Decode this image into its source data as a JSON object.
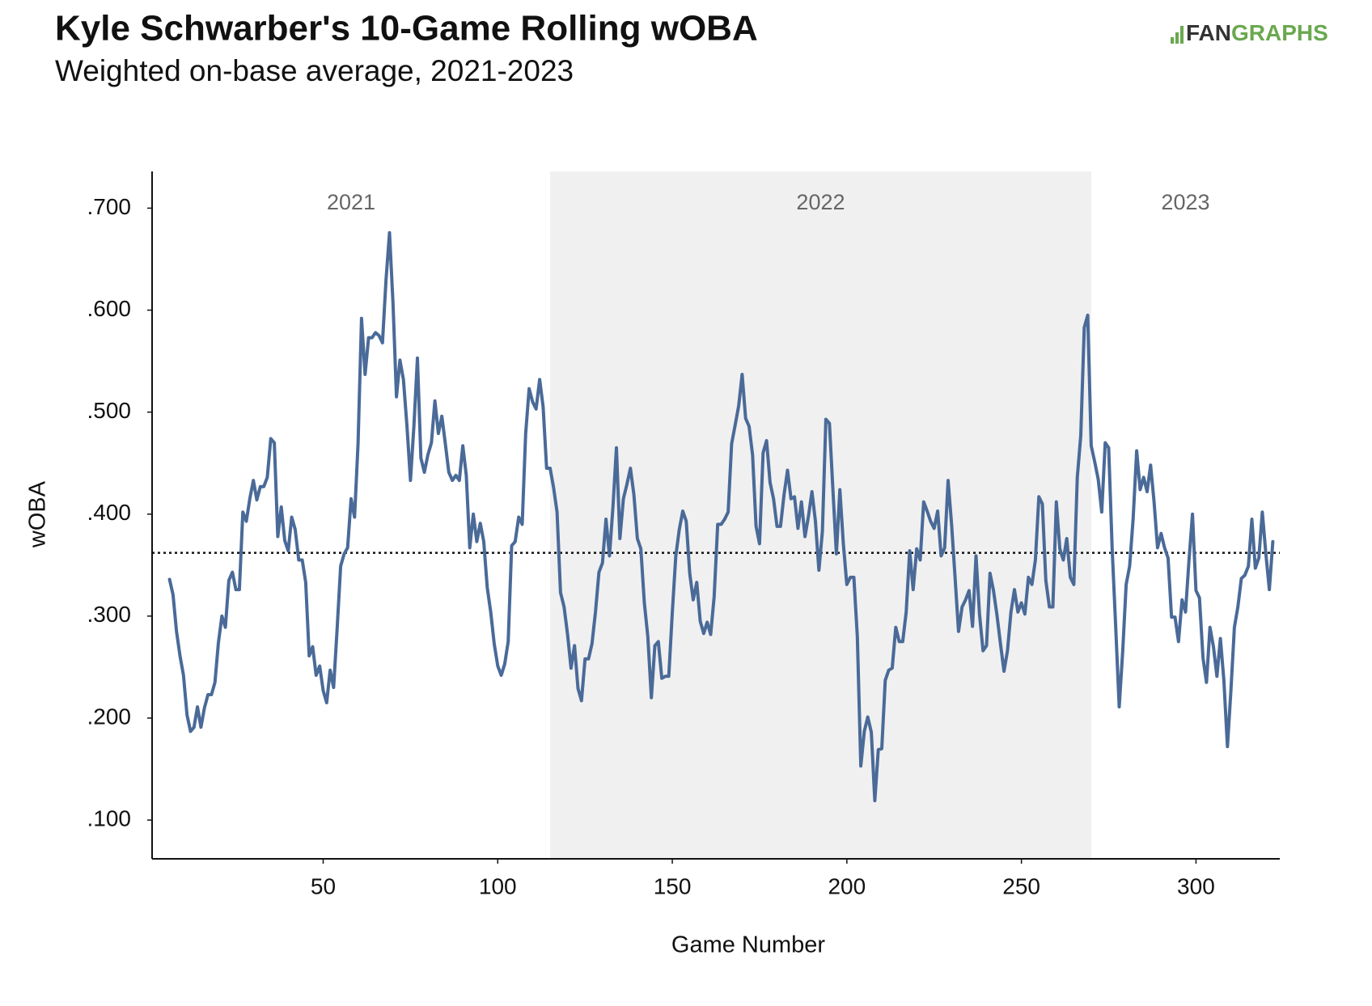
{
  "chart_data": {
    "type": "line",
    "title": "Kyle Schwarber's 10-Game Rolling wOBA",
    "subtitle": "Weighted on-base average, 2021-2023",
    "logo": [
      "FAN",
      "GRAPHS"
    ],
    "x_label": "Game Number",
    "y_label": "wOBA",
    "color": "#4a6a98",
    "xlim": [
      1,
      324
    ],
    "xticks": [
      50,
      100,
      150,
      200,
      250,
      300
    ],
    "ylim": [
      0.062,
      0.736
    ],
    "yticks": [
      {
        "value": 0.1,
        "label": ".100"
      },
      {
        "value": 0.2,
        "label": ".200"
      },
      {
        "value": 0.3,
        "label": ".300"
      },
      {
        "value": 0.4,
        "label": ".400"
      },
      {
        "value": 0.5,
        "label": ".500"
      },
      {
        "value": 0.6,
        "label": ".600"
      },
      {
        "value": 0.7,
        "label": ".700"
      }
    ],
    "reference_line": 0.362,
    "seasons": [
      {
        "label": "2021",
        "start": 1,
        "end": 115,
        "shaded": false
      },
      {
        "label": "2022",
        "start": 115,
        "end": 270,
        "shaded": true
      },
      {
        "label": "2023",
        "start": 270,
        "end": 324,
        "shaded": false
      }
    ],
    "x": [
      6,
      7,
      8,
      9,
      10,
      11,
      12,
      13,
      14,
      15,
      16,
      17,
      18,
      19,
      20,
      21,
      22,
      23,
      24,
      25,
      26,
      27,
      28,
      29,
      30,
      31,
      32,
      33,
      34,
      35,
      36,
      37,
      38,
      39,
      40,
      41,
      42,
      43,
      44,
      45,
      46,
      47,
      48,
      49,
      50,
      51,
      52,
      53,
      54,
      55,
      56,
      57,
      58,
      59,
      60,
      61,
      62,
      63,
      64,
      65,
      66,
      67,
      68,
      69,
      70,
      71,
      72,
      73,
      74,
      75,
      76,
      77,
      78,
      79,
      80,
      81,
      82,
      83,
      84,
      85,
      86,
      87,
      88,
      89,
      90,
      91,
      92,
      93,
      94,
      95,
      96,
      97,
      98,
      99,
      100,
      101,
      102,
      103,
      104,
      105,
      106,
      107,
      108,
      109,
      110,
      111,
      112,
      113,
      114,
      115,
      116,
      117,
      118,
      119,
      120,
      121,
      122,
      123,
      124,
      125,
      126,
      127,
      128,
      129,
      130,
      131,
      132,
      133,
      134,
      135,
      136,
      137,
      138,
      139,
      140,
      141,
      142,
      143,
      144,
      145,
      146,
      147,
      148,
      149,
      150,
      151,
      152,
      153,
      154,
      155,
      156,
      157,
      158,
      159,
      160,
      161,
      162,
      163,
      164,
      165,
      166,
      167,
      168,
      169,
      170,
      171,
      172,
      173,
      174,
      175,
      176,
      177,
      178,
      179,
      180,
      181,
      182,
      183,
      184,
      185,
      186,
      187,
      188,
      189,
      190,
      191,
      192,
      193,
      194,
      195,
      196,
      197,
      198,
      199,
      200,
      201,
      202,
      203,
      204,
      205,
      206,
      207,
      208,
      209,
      210,
      211,
      212,
      213,
      214,
      215,
      216,
      217,
      218,
      219,
      220,
      221,
      222,
      223,
      224,
      225,
      226,
      227,
      228,
      229,
      230,
      231,
      232,
      233,
      234,
      235,
      236,
      237,
      238,
      239,
      240,
      241,
      242,
      243,
      244,
      245,
      246,
      247,
      248,
      249,
      250,
      251,
      252,
      253,
      254,
      255,
      256,
      257,
      258,
      259,
      260,
      261,
      262,
      263,
      264,
      265,
      266,
      267,
      268,
      269,
      270,
      271,
      272,
      273,
      274,
      275,
      276,
      277,
      278,
      279,
      280,
      281,
      282,
      283,
      284,
      285,
      286,
      287,
      288,
      289,
      290,
      291,
      292,
      293,
      294,
      295,
      296,
      297,
      298,
      299,
      300,
      301,
      302,
      303,
      304,
      305,
      306,
      307,
      308,
      309,
      310,
      311,
      312,
      313,
      314,
      315,
      316,
      317,
      318,
      319,
      320,
      321,
      322
    ],
    "values": [
      0.336,
      0.321,
      0.285,
      0.261,
      0.242,
      0.203,
      0.187,
      0.191,
      0.211,
      0.191,
      0.21,
      0.223,
      0.223,
      0.235,
      0.274,
      0.3,
      0.289,
      0.335,
      0.343,
      0.326,
      0.326,
      0.402,
      0.393,
      0.415,
      0.433,
      0.414,
      0.427,
      0.427,
      0.436,
      0.474,
      0.47,
      0.378,
      0.407,
      0.374,
      0.364,
      0.397,
      0.385,
      0.355,
      0.355,
      0.333,
      0.261,
      0.27,
      0.242,
      0.251,
      0.227,
      0.215,
      0.247,
      0.23,
      0.287,
      0.349,
      0.361,
      0.367,
      0.415,
      0.397,
      0.469,
      0.592,
      0.537,
      0.573,
      0.573,
      0.578,
      0.575,
      0.568,
      0.63,
      0.676,
      0.607,
      0.515,
      0.551,
      0.532,
      0.486,
      0.433,
      0.487,
      0.553,
      0.455,
      0.441,
      0.458,
      0.47,
      0.511,
      0.479,
      0.496,
      0.469,
      0.441,
      0.433,
      0.438,
      0.433,
      0.467,
      0.438,
      0.367,
      0.4,
      0.373,
      0.391,
      0.373,
      0.328,
      0.304,
      0.273,
      0.251,
      0.242,
      0.253,
      0.275,
      0.369,
      0.373,
      0.397,
      0.39,
      0.479,
      0.523,
      0.51,
      0.503,
      0.532,
      0.505,
      0.445,
      0.445,
      0.426,
      0.402,
      0.323,
      0.309,
      0.282,
      0.249,
      0.271,
      0.229,
      0.217,
      0.258,
      0.258,
      0.273,
      0.304,
      0.343,
      0.352,
      0.395,
      0.359,
      0.407,
      0.465,
      0.376,
      0.415,
      0.429,
      0.445,
      0.419,
      0.376,
      0.366,
      0.313,
      0.28,
      0.22,
      0.271,
      0.275,
      0.239,
      0.241,
      0.241,
      0.304,
      0.359,
      0.385,
      0.403,
      0.393,
      0.342,
      0.316,
      0.333,
      0.295,
      0.283,
      0.294,
      0.282,
      0.319,
      0.39,
      0.39,
      0.395,
      0.402,
      0.469,
      0.487,
      0.506,
      0.537,
      0.494,
      0.486,
      0.458,
      0.388,
      0.371,
      0.46,
      0.472,
      0.431,
      0.415,
      0.388,
      0.388,
      0.419,
      0.443,
      0.415,
      0.417,
      0.386,
      0.412,
      0.378,
      0.398,
      0.422,
      0.393,
      0.345,
      0.383,
      0.493,
      0.489,
      0.424,
      0.361,
      0.424,
      0.371,
      0.331,
      0.338,
      0.338,
      0.28,
      0.153,
      0.187,
      0.201,
      0.186,
      0.119,
      0.169,
      0.17,
      0.237,
      0.247,
      0.249,
      0.289,
      0.275,
      0.275,
      0.304,
      0.364,
      0.326,
      0.366,
      0.355,
      0.412,
      0.403,
      0.393,
      0.386,
      0.403,
      0.359,
      0.367,
      0.433,
      0.39,
      0.338,
      0.285,
      0.309,
      0.316,
      0.325,
      0.29,
      0.359,
      0.302,
      0.266,
      0.271,
      0.342,
      0.325,
      0.301,
      0.273,
      0.246,
      0.266,
      0.304,
      0.326,
      0.304,
      0.313,
      0.302,
      0.338,
      0.331,
      0.355,
      0.417,
      0.41,
      0.335,
      0.309,
      0.309,
      0.412,
      0.366,
      0.355,
      0.376,
      0.338,
      0.331,
      0.436,
      0.477,
      0.583,
      0.595,
      0.467,
      0.451,
      0.434,
      0.402,
      0.47,
      0.465,
      0.366,
      0.289,
      0.211,
      0.265,
      0.331,
      0.349,
      0.395,
      0.462,
      0.424,
      0.436,
      0.422,
      0.448,
      0.412,
      0.367,
      0.381,
      0.367,
      0.357,
      0.299,
      0.299,
      0.275,
      0.316,
      0.304,
      0.355,
      0.4,
      0.325,
      0.318,
      0.259,
      0.235,
      0.289,
      0.27,
      0.241,
      0.278,
      0.237,
      0.172,
      0.227,
      0.289,
      0.309,
      0.337,
      0.34,
      0.349,
      0.395,
      0.347,
      0.357,
      0.402,
      0.362,
      0.326,
      0.373
    ]
  }
}
